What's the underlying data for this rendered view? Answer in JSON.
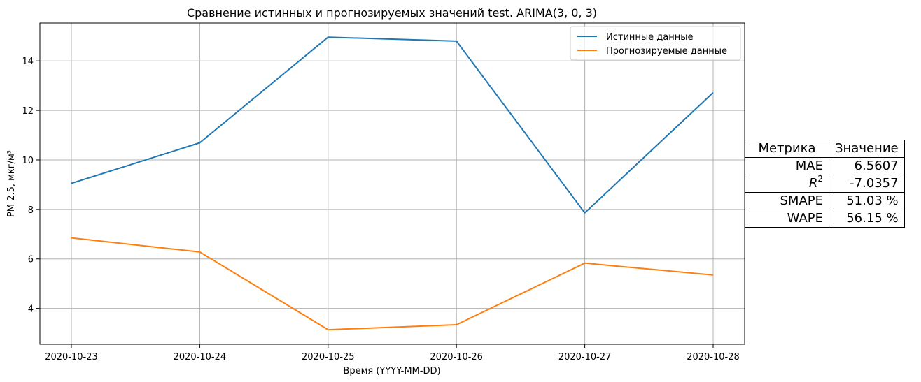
{
  "colors": {
    "true_series": "#1f77b4",
    "pred_series": "#ff7f0e",
    "grid": "#b0b0b0"
  },
  "chart_data": {
    "type": "line",
    "title": "Сравнение истинных и прогнозируемых значений test. ARIMA(3, 0, 3)",
    "xlabel": "Время (YYYY-MM-DD)",
    "ylabel": "PM 2.5, мкг/м³",
    "categories": [
      "2020-10-23",
      "2020-10-24",
      "2020-10-25",
      "2020-10-26",
      "2020-10-27",
      "2020-10-28"
    ],
    "series": [
      {
        "name": "Истинные данные",
        "color": "#1f77b4",
        "values": [
          9.05,
          10.69,
          14.96,
          14.8,
          7.86,
          12.72
        ]
      },
      {
        "name": "Прогнозируемые данные",
        "color": "#ff7f0e",
        "values": [
          6.85,
          6.28,
          3.14,
          3.34,
          5.83,
          5.35
        ]
      }
    ],
    "yticks": [
      4,
      6,
      8,
      10,
      12,
      14
    ],
    "ylim": [
      2.55,
      15.53
    ],
    "grid": true,
    "legend": "top-right"
  },
  "metrics_table": {
    "header": {
      "metric": "Метрика",
      "value": "Значение"
    },
    "rows": [
      {
        "metric": "MAE",
        "value": "6.5607"
      },
      {
        "metric": "R",
        "sup": "2",
        "value": "-7.0357"
      },
      {
        "metric": "SMAPE",
        "value": "51.03 %"
      },
      {
        "metric": "WAPE",
        "value": "56.15 %"
      }
    ]
  }
}
